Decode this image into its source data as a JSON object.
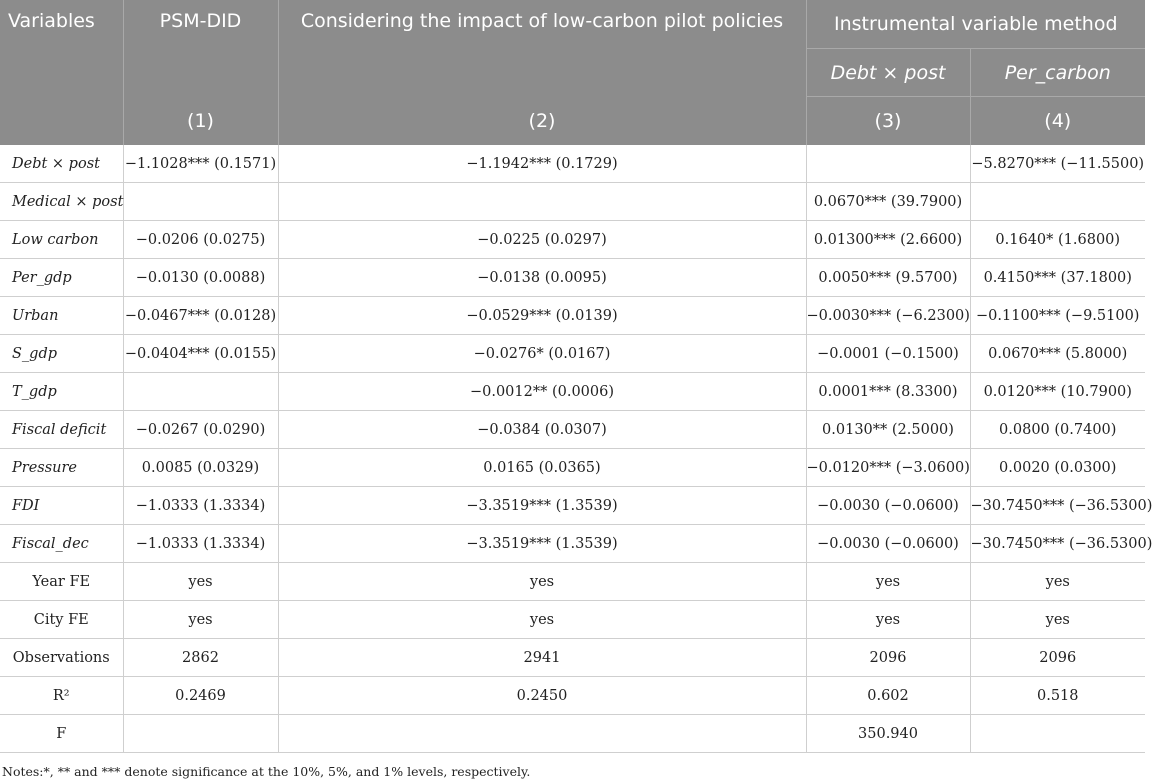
{
  "header": {
    "variables": "Variables",
    "psm_did": "PSM-DID",
    "low_carbon": "Considering the impact of low-carbon pilot policies",
    "iv_method": "Instrumental variable method",
    "iv_sub_1": "Debt × post",
    "iv_sub_2": "Per_carbon",
    "col_nums": [
      "(1)",
      "(2)",
      "(3)",
      "(4)"
    ]
  },
  "rows": [
    {
      "name": "Debt × post",
      "italic": true,
      "c1": "−1.1028*** (0.1571)",
      "c2": "−1.1942*** (0.1729)",
      "c3": "",
      "c4": "−5.8270*** (−11.5500)"
    },
    {
      "name": "Medical × post",
      "italic": true,
      "c1": "",
      "c2": "",
      "c3": "0.0670*** (39.7900)",
      "c4": ""
    },
    {
      "name": "Low carbon",
      "italic": true,
      "c1": "−0.0206 (0.0275)",
      "c2": "−0.0225 (0.0297)",
      "c3": "0.01300*** (2.6600)",
      "c4": "0.1640* (1.6800)"
    },
    {
      "name": "Per_gdp",
      "italic": true,
      "c1": "−0.0130 (0.0088)",
      "c2": "−0.0138 (0.0095)",
      "c3": "0.0050*** (9.5700)",
      "c4": "0.4150*** (37.1800)"
    },
    {
      "name": "Urban",
      "italic": true,
      "c1": "−0.0467*** (0.0128)",
      "c2": "−0.0529*** (0.0139)",
      "c3": "−0.0030*** (−6.2300)",
      "c4": "−0.1100*** (−9.5100)"
    },
    {
      "name": "S_gdp",
      "italic": true,
      "c1": "−0.0404*** (0.0155)",
      "c2": "−0.0276* (0.0167)",
      "c3": "−0.0001 (−0.1500)",
      "c4": "0.0670*** (5.8000)"
    },
    {
      "name": "T_gdp",
      "italic": true,
      "c1": "",
      "c2": "−0.0012** (0.0006)",
      "c3": "0.0001*** (8.3300)",
      "c4": "0.0120*** (10.7900)"
    },
    {
      "name": "Fiscal deficit",
      "italic": true,
      "c1": "−0.0267 (0.0290)",
      "c2": "−0.0384 (0.0307)",
      "c3": "0.0130** (2.5000)",
      "c4": "0.0800 (0.7400)"
    },
    {
      "name": "Pressure",
      "italic": true,
      "c1": "0.0085 (0.0329)",
      "c2": "0.0165 (0.0365)",
      "c3": "−0.0120*** (−3.0600)",
      "c4": "0.0020 (0.0300)"
    },
    {
      "name": "FDI",
      "italic": true,
      "c1": "−1.0333 (1.3334)",
      "c2": "−3.3519*** (1.3539)",
      "c3": "−0.0030 (−0.0600)",
      "c4": "−30.7450*** (−36.5300)"
    },
    {
      "name": "Fiscal_dec",
      "italic": true,
      "c1": "−1.0333 (1.3334)",
      "c2": "−3.3519*** (1.3539)",
      "c3": "−0.0030 (−0.0600)",
      "c4": "−30.7450*** (−36.5300)"
    },
    {
      "name": "Year FE",
      "italic": false,
      "c1": "yes",
      "c2": "yes",
      "c3": "yes",
      "c4": "yes"
    },
    {
      "name": "City FE",
      "italic": false,
      "c1": "yes",
      "c2": "yes",
      "c3": "yes",
      "c4": "yes"
    },
    {
      "name": "Observations",
      "italic": false,
      "c1": "2862",
      "c2": "2941",
      "c3": "2096",
      "c4": "2096"
    },
    {
      "name": "R²",
      "italic": false,
      "c1": "0.2469",
      "c2": "0.2450",
      "c3": "0.602",
      "c4": "0.518"
    },
    {
      "name": "F",
      "italic": false,
      "c1": "",
      "c2": "",
      "c3": "350.940",
      "c4": ""
    }
  ],
  "note": "Notes:*, ** and *** denote significance at the 10%, 5%, and 1% levels, respectively.",
  "colors": {
    "header_bg": "#8c8c8c",
    "header_text": "#ffffff",
    "grid": "#cfcfcf"
  }
}
